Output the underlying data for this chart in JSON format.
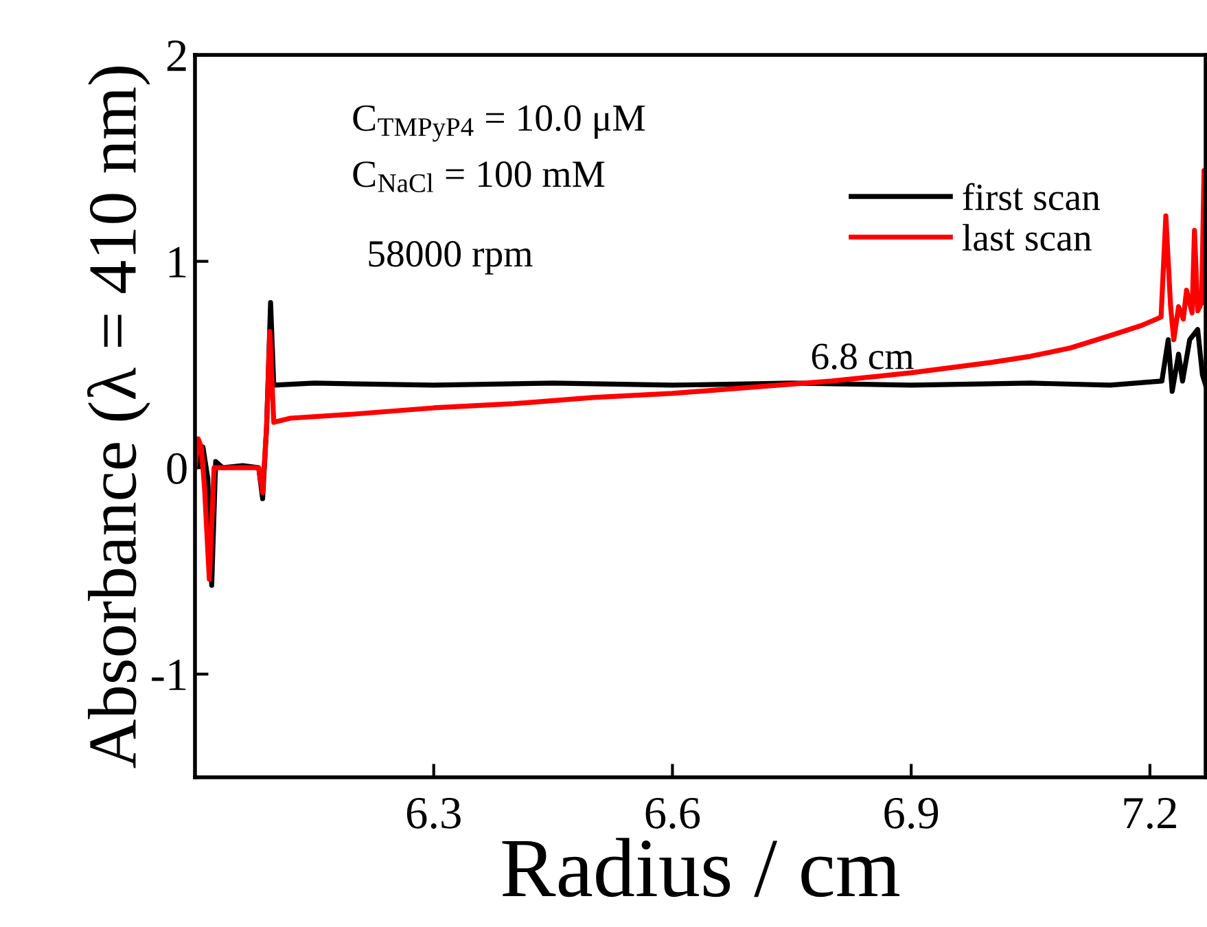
{
  "chart_data": {
    "type": "line",
    "xlabel": "Radius / cm",
    "ylabel": "Absorbance (λ = 410 nm)",
    "xlim": [
      6.0,
      7.27
    ],
    "xticks": [
      6.3,
      6.6,
      6.9,
      7.2
    ],
    "ylim": [
      -1.5,
      2
    ],
    "yticks": [
      -1,
      0,
      1,
      2
    ],
    "grid": false,
    "legend": "top right",
    "marker": "none",
    "line_style": "solid",
    "annotations": [
      "C$_{TMPyP4}$ = 10.0 μM",
      "C$_{NaCl}$ = 100 mM",
      "58000 rpm",
      "6.8 cm"
    ],
    "series": [
      {
        "name": "first scan",
        "color": "#000000",
        "x": [
          6.0,
          6.005,
          6.01,
          6.016,
          6.021,
          6.026,
          6.035,
          6.06,
          6.08,
          6.085,
          6.09,
          6.095,
          6.099,
          6.15,
          6.3,
          6.45,
          6.6,
          6.75,
          6.9,
          7.05,
          7.15,
          7.215,
          7.223,
          7.228,
          7.236,
          7.241,
          7.25,
          7.26,
          7.266,
          7.27
        ],
        "values": [
          0.0,
          0.02,
          0.1,
          -0.05,
          -0.57,
          0.03,
          0.0,
          0.01,
          0.0,
          -0.15,
          0.2,
          0.8,
          0.4,
          0.41,
          0.4,
          0.41,
          0.4,
          0.41,
          0.4,
          0.41,
          0.4,
          0.42,
          0.62,
          0.37,
          0.55,
          0.42,
          0.62,
          0.67,
          0.45,
          0.4
        ]
      },
      {
        "name": "last scan",
        "color": "#ff0000",
        "x": [
          6.0,
          6.004,
          6.008,
          6.012,
          6.018,
          6.024,
          6.035,
          6.06,
          6.08,
          6.085,
          6.09,
          6.094,
          6.099,
          6.12,
          6.2,
          6.3,
          6.4,
          6.5,
          6.6,
          6.7,
          6.8,
          6.9,
          7.0,
          7.05,
          7.1,
          7.15,
          7.19,
          7.214,
          7.22,
          7.226,
          7.23,
          7.236,
          7.242,
          7.246,
          7.253,
          7.256,
          7.26,
          7.265,
          7.268,
          7.27
        ],
        "values": [
          0.0,
          0.14,
          0.1,
          -0.1,
          -0.54,
          0.0,
          0.0,
          0.0,
          0.0,
          -0.12,
          0.2,
          0.66,
          0.22,
          0.24,
          0.26,
          0.29,
          0.31,
          0.34,
          0.36,
          0.39,
          0.42,
          0.46,
          0.51,
          0.54,
          0.58,
          0.64,
          0.69,
          0.73,
          1.22,
          0.78,
          0.62,
          0.78,
          0.72,
          0.86,
          0.75,
          1.15,
          0.76,
          0.8,
          1.44,
          0.8
        ]
      }
    ]
  }
}
